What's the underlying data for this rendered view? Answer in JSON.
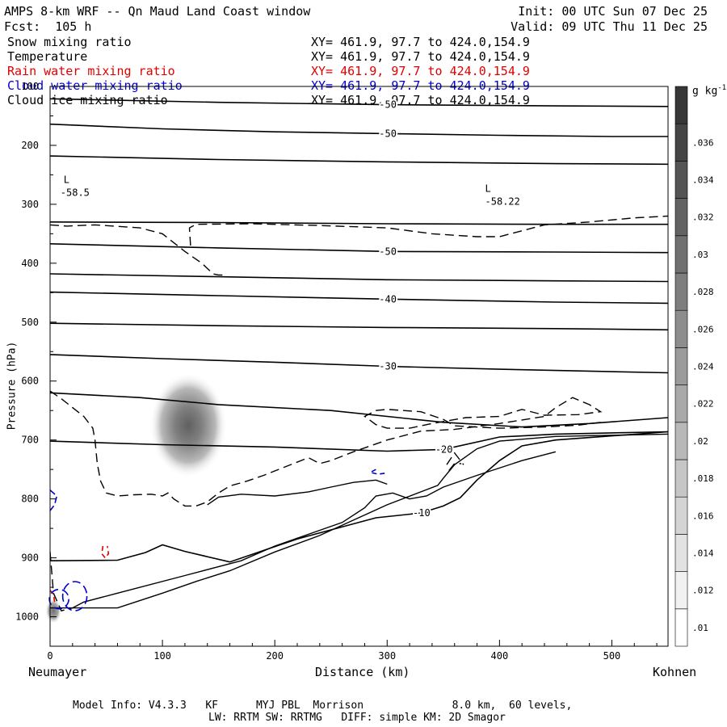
{
  "header": {
    "title": "AMPS 8-km WRF -- Qn Maud Land Coast window",
    "forecast": "Fcst:  105 h",
    "init": "Init: 00 UTC Sun 07 Dec 25",
    "valid": "Valid: 09 UTC Thu 11 Dec 25"
  },
  "fields": [
    {
      "name": "Snow mixing ratio",
      "xy": "XY= 461.9, 97.7 to 424.0,154.9",
      "color": "#000000"
    },
    {
      "name": "Temperature",
      "xy": "XY= 461.9, 97.7 to 424.0,154.9",
      "color": "#000000"
    },
    {
      "name": "Rain water mixing ratio",
      "xy": "XY= 461.9, 97.7 to 424.0,154.9",
      "color": "#e00000"
    },
    {
      "name": "Cloud water mixing ratio",
      "xy": "XY= 461.9, 97.7 to 424.0,154.9",
      "color": "#0000cc"
    },
    {
      "name": "Cloud ice mixing ratio",
      "xy": "XY= 461.9, 97.7 to 424.0,154.9",
      "color": "#000000"
    }
  ],
  "footer": {
    "model_info": "Model Info: V4.3.3   KF      MYJ PBL  Morrison              8.0 km,  60 levels,",
    "physics": "LW: RRTM SW: RRTMG   DIFF: simple KM: 2D Smagor"
  },
  "chart_data": {
    "type": "contour-cross-section",
    "xlabel": "Distance (km)",
    "ylabel": "Pressure (hPa)",
    "xlim": [
      0,
      550
    ],
    "ylim": [
      1050,
      100
    ],
    "x_ticks": [
      0,
      100,
      200,
      300,
      400,
      500
    ],
    "y_ticks": [
      100,
      200,
      300,
      400,
      500,
      600,
      700,
      800,
      900,
      1000
    ],
    "start_label": "Neumayer",
    "end_label": "Kohnen",
    "colorbar": {
      "unit": "g kg",
      "unit_sup": "-1",
      "ticks": [
        ".01",
        ".012",
        ".014",
        ".016",
        ".018",
        ".02",
        ".022",
        ".024",
        ".026",
        ".028",
        ".03",
        ".032",
        ".034",
        ".036"
      ],
      "tick_values": [
        0.01,
        0.012,
        0.014,
        0.016,
        0.018,
        0.02,
        0.022,
        0.024,
        0.026,
        0.028,
        0.03,
        0.032,
        0.034,
        0.036
      ],
      "range": [
        0.009,
        0.039
      ]
    },
    "shaded_maxima": [
      {
        "x": 123,
        "p": 675,
        "value": 0.03
      },
      {
        "x": 3,
        "p": 990,
        "value": 0.025
      }
    ],
    "lows": [
      {
        "label": "L",
        "value": "-58.5",
        "x": 2,
        "p": 275
      },
      {
        "label": "L",
        "value": "-58.22",
        "x": 380,
        "p": 290
      }
    ],
    "temperature_isotherms": [
      {
        "label": "-50",
        "points": [
          [
            0,
            121
          ],
          [
            150,
            127
          ],
          [
            300,
            131
          ],
          [
            450,
            133
          ],
          [
            550,
            134
          ]
        ]
      },
      {
        "label": "-50",
        "points": [
          [
            0,
            164
          ],
          [
            100,
            172
          ],
          [
            200,
            177
          ],
          [
            300,
            180
          ],
          [
            400,
            183
          ],
          [
            500,
            185
          ],
          [
            550,
            185
          ]
        ]
      },
      {
        "label": "",
        "points": [
          [
            0,
            218
          ],
          [
            150,
            224
          ],
          [
            300,
            228
          ],
          [
            450,
            231
          ],
          [
            550,
            232
          ]
        ]
      },
      {
        "label": "",
        "points": [
          [
            0,
            330
          ],
          [
            150,
            331
          ],
          [
            300,
            333
          ],
          [
            450,
            334
          ],
          [
            550,
            334
          ]
        ]
      },
      {
        "label": "-50",
        "points": [
          [
            0,
            367
          ],
          [
            150,
            374
          ],
          [
            300,
            380
          ],
          [
            450,
            381
          ],
          [
            550,
            382
          ]
        ]
      },
      {
        "label": "",
        "points": [
          [
            0,
            418
          ],
          [
            150,
            423
          ],
          [
            300,
            428
          ],
          [
            450,
            430
          ],
          [
            550,
            431
          ]
        ]
      },
      {
        "label": "-40",
        "points": [
          [
            0,
            449
          ],
          [
            150,
            455
          ],
          [
            300,
            461
          ],
          [
            450,
            466
          ],
          [
            550,
            468
          ]
        ]
      },
      {
        "label": "",
        "points": [
          [
            0,
            502
          ],
          [
            150,
            506
          ],
          [
            300,
            509
          ],
          [
            450,
            511
          ],
          [
            550,
            513
          ]
        ]
      },
      {
        "label": "-30",
        "points": [
          [
            0,
            555
          ],
          [
            100,
            562
          ],
          [
            200,
            568
          ],
          [
            300,
            575
          ],
          [
            400,
            580
          ],
          [
            500,
            584
          ],
          [
            550,
            586
          ]
        ]
      },
      {
        "label": "",
        "points": [
          [
            0,
            620
          ],
          [
            80,
            628
          ],
          [
            150,
            640
          ],
          [
            250,
            650
          ],
          [
            350,
            670
          ],
          [
            420,
            678
          ],
          [
            480,
            672
          ],
          [
            550,
            662
          ]
        ]
      },
      {
        "label": "-20",
        "points": [
          [
            0,
            702
          ],
          [
            100,
            708
          ],
          [
            200,
            712
          ],
          [
            300,
            719
          ],
          [
            350,
            716
          ],
          [
            400,
            695
          ],
          [
            450,
            690
          ],
          [
            550,
            686
          ]
        ]
      },
      {
        "label": "-10",
        "points": [
          [
            0,
            905
          ],
          [
            60,
            904
          ],
          [
            85,
            891
          ],
          [
            100,
            878
          ],
          [
            120,
            889
          ],
          [
            160,
            907
          ],
          [
            220,
            868
          ],
          [
            290,
            832
          ],
          [
            330,
            824
          ],
          [
            350,
            812
          ],
          [
            365,
            798
          ],
          [
            380,
            768
          ],
          [
            400,
            735
          ],
          [
            420,
            710
          ],
          [
            450,
            700
          ],
          [
            550,
            686
          ]
        ]
      }
    ]
  }
}
